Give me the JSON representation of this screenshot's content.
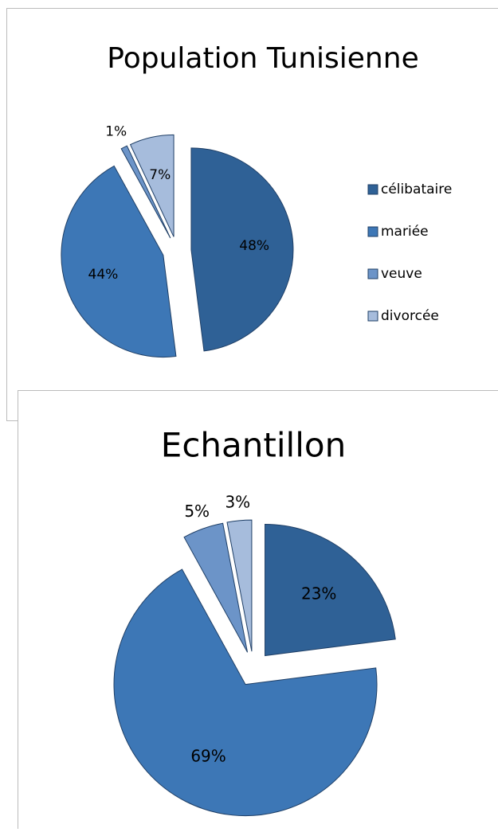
{
  "chart_data": [
    {
      "type": "pie",
      "title": "Population Tunisienne",
      "categories": [
        "célibataire",
        "mariée",
        "veuve",
        "divorcée"
      ],
      "values": [
        48,
        44,
        1,
        7
      ],
      "value_labels": [
        "48%",
        "44%",
        "1%",
        "7%"
      ],
      "colors": [
        "#2f6196",
        "#3d77b6",
        "#6c94c8",
        "#a6bcdc"
      ],
      "legend": "right"
    },
    {
      "type": "pie",
      "title": "Echantillon",
      "categories": [
        "célibataire",
        "mariée",
        "veuve",
        "divorcée"
      ],
      "values": [
        23,
        69,
        5,
        3
      ],
      "value_labels": [
        "23%",
        "69%",
        "5%",
        "3%"
      ],
      "colors": [
        "#2f6196",
        "#3d77b6",
        "#6c94c8",
        "#a6bcdc"
      ]
    }
  ]
}
